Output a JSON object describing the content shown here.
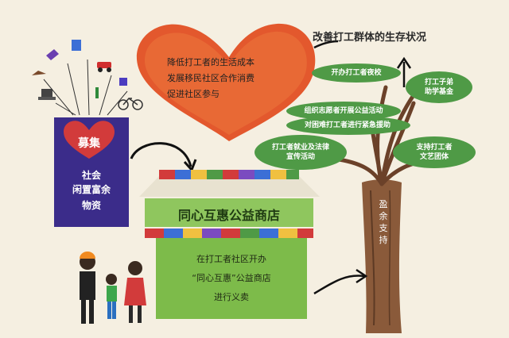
{
  "heading": "改善打工群体的生存状况",
  "collect_box": {
    "label": "募集",
    "line1": "社会",
    "line2": "闲置富余",
    "line3": "物资"
  },
  "heart": {
    "items": [
      "降低打工者的生活成本",
      "发展移民社区合作消费",
      "促进社区参与"
    ]
  },
  "tree": {
    "leaves": [
      "开办打工者夜校",
      "打工子弟\n助学基金",
      "组织志愿者开展公益活动",
      "对困难打工者进行紧急援助",
      "打工者就业及法律\n宣传活动",
      "支持打工者\n文艺团体"
    ],
    "trunk": "盈余支持"
  },
  "store": {
    "sign": "同心互惠公益商店",
    "desc": [
      "在打工者社区开办",
      "“同心互惠”公益商店",
      "进行义卖"
    ]
  },
  "colors": {
    "background": "#f5efe1",
    "heart": "#e3582d",
    "box_purple": "#3b2c8a",
    "store_green": "#7dbb4a",
    "leaf_green": "#4f9a46",
    "trunk_brown": "#8a5a3a"
  }
}
